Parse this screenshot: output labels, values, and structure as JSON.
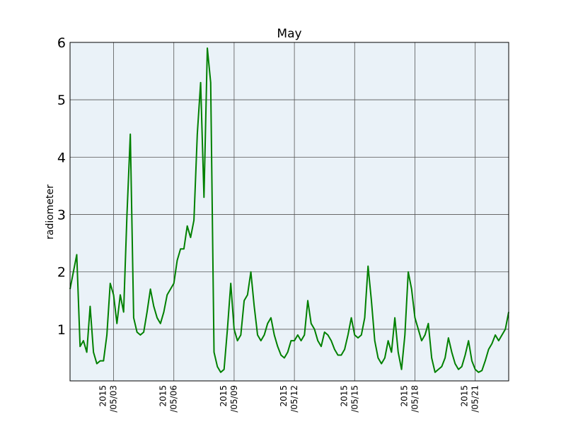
{
  "chart_data": {
    "type": "line",
    "title": "May",
    "y_label": "radiometer",
    "x": [
      "2015-04-30 20:00",
      "2015-05-01 00:00",
      "2015-05-01 04:00",
      "2015-05-01 08:00",
      "2015-05-01 12:00",
      "2015-05-01 16:00",
      "2015-05-01 20:00",
      "2015-05-02 00:00",
      "2015-05-02 04:00",
      "2015-05-02 08:00",
      "2015-05-02 12:00",
      "2015-05-02 16:00",
      "2015-05-02 20:00",
      "2015-05-03 00:00",
      "2015-05-03 04:00",
      "2015-05-03 08:00",
      "2015-05-03 12:00",
      "2015-05-03 16:00",
      "2015-05-03 20:00",
      "2015-05-04 00:00",
      "2015-05-04 04:00",
      "2015-05-04 08:00",
      "2015-05-04 12:00",
      "2015-05-04 16:00",
      "2015-05-04 20:00",
      "2015-05-05 00:00",
      "2015-05-05 04:00",
      "2015-05-05 08:00",
      "2015-05-05 12:00",
      "2015-05-05 16:00",
      "2015-05-05 20:00",
      "2015-05-06 00:00",
      "2015-05-06 04:00",
      "2015-05-06 08:00",
      "2015-05-06 12:00",
      "2015-05-06 16:00",
      "2015-05-06 20:00",
      "2015-05-07 00:00",
      "2015-05-07 04:00",
      "2015-05-07 08:00",
      "2015-05-07 12:00",
      "2015-05-07 16:00",
      "2015-05-07 20:00",
      "2015-05-08 00:00",
      "2015-05-08 04:00",
      "2015-05-08 08:00",
      "2015-05-08 12:00",
      "2015-05-08 16:00",
      "2015-05-08 20:00",
      "2015-05-09 00:00",
      "2015-05-09 04:00",
      "2015-05-09 08:00",
      "2015-05-09 12:00",
      "2015-05-09 16:00",
      "2015-05-09 20:00",
      "2015-05-10 00:00",
      "2015-05-10 04:00",
      "2015-05-10 08:00",
      "2015-05-10 12:00",
      "2015-05-10 16:00",
      "2015-05-10 20:00",
      "2015-05-11 00:00",
      "2015-05-11 04:00",
      "2015-05-11 08:00",
      "2015-05-11 12:00",
      "2015-05-11 16:00",
      "2015-05-11 20:00",
      "2015-05-12 00:00",
      "2015-05-12 04:00",
      "2015-05-12 08:00",
      "2015-05-12 12:00",
      "2015-05-12 16:00",
      "2015-05-12 20:00",
      "2015-05-13 00:00",
      "2015-05-13 04:00",
      "2015-05-13 08:00",
      "2015-05-13 12:00",
      "2015-05-13 16:00",
      "2015-05-13 20:00",
      "2015-05-14 00:00",
      "2015-05-14 04:00",
      "2015-05-14 08:00",
      "2015-05-14 12:00",
      "2015-05-14 16:00",
      "2015-05-14 20:00",
      "2015-05-15 00:00",
      "2015-05-15 04:00",
      "2015-05-15 08:00",
      "2015-05-15 12:00",
      "2015-05-15 16:00",
      "2015-05-15 20:00",
      "2015-05-16 00:00",
      "2015-05-16 04:00",
      "2015-05-16 08:00",
      "2015-05-16 12:00",
      "2015-05-16 16:00",
      "2015-05-16 20:00",
      "2015-05-17 00:00",
      "2015-05-17 04:00",
      "2015-05-17 08:00",
      "2015-05-17 12:00",
      "2015-05-17 16:00",
      "2015-05-17 20:00",
      "2015-05-18 00:00",
      "2015-05-18 04:00",
      "2015-05-18 08:00",
      "2015-05-18 12:00",
      "2015-05-18 16:00",
      "2015-05-18 20:00",
      "2015-05-19 00:00",
      "2015-05-19 04:00",
      "2015-05-19 08:00",
      "2015-05-19 12:00",
      "2015-05-19 16:00",
      "2015-05-19 20:00",
      "2015-05-20 00:00",
      "2015-05-20 04:00",
      "2015-05-20 08:00",
      "2015-05-20 12:00",
      "2015-05-20 16:00",
      "2015-05-20 20:00",
      "2015-05-21 00:00",
      "2015-05-21 04:00",
      "2015-05-21 08:00",
      "2015-05-21 12:00",
      "2015-05-21 16:00",
      "2015-05-21 20:00",
      "2015-05-22 00:00",
      "2015-05-22 04:00",
      "2015-05-22 08:00",
      "2015-05-22 12:00",
      "2015-05-22 16:00"
    ],
    "series": [
      {
        "name": "radiometer",
        "color": "#008000",
        "values": [
          1.7,
          2.0,
          2.3,
          0.7,
          0.8,
          0.6,
          1.4,
          0.6,
          0.4,
          0.45,
          0.45,
          0.9,
          1.8,
          1.6,
          1.1,
          1.6,
          1.3,
          3.0,
          4.4,
          1.2,
          0.95,
          0.9,
          0.95,
          1.3,
          1.7,
          1.4,
          1.2,
          1.1,
          1.3,
          1.6,
          1.7,
          1.8,
          2.2,
          2.4,
          2.4,
          2.8,
          2.6,
          2.9,
          4.4,
          5.3,
          3.3,
          5.9,
          5.3,
          0.6,
          0.35,
          0.25,
          0.3,
          1.0,
          1.8,
          1.0,
          0.8,
          0.9,
          1.5,
          1.6,
          2.0,
          1.4,
          0.9,
          0.8,
          0.9,
          1.1,
          1.2,
          0.9,
          0.7,
          0.55,
          0.5,
          0.6,
          0.8,
          0.8,
          0.9,
          0.8,
          0.9,
          1.5,
          1.1,
          1.0,
          0.8,
          0.7,
          0.95,
          0.9,
          0.8,
          0.65,
          0.55,
          0.55,
          0.65,
          0.9,
          1.2,
          0.9,
          0.85,
          0.9,
          1.2,
          2.1,
          1.5,
          0.8,
          0.5,
          0.4,
          0.5,
          0.8,
          0.6,
          1.2,
          0.6,
          0.3,
          0.9,
          2.0,
          1.7,
          1.2,
          1.0,
          0.8,
          0.9,
          1.1,
          0.5,
          0.25,
          0.3,
          0.35,
          0.5,
          0.85,
          0.6,
          0.4,
          0.3,
          0.35,
          0.55,
          0.8,
          0.45,
          0.3,
          0.25,
          0.28,
          0.45,
          0.65,
          0.75,
          0.9,
          0.8,
          0.9,
          1.0,
          1.3
        ]
      }
    ],
    "xlim": [
      "2015-04-30 20:00",
      "2015-05-22 16:00"
    ],
    "xticks": [
      {
        "value": "2015-05-03 00:00",
        "label": "2015\n/05/03"
      },
      {
        "value": "2015-05-06 00:00",
        "label": "2015\n/05/06"
      },
      {
        "value": "2015-05-09 00:00",
        "label": "2015\n/05/09"
      },
      {
        "value": "2015-05-12 00:00",
        "label": "2015\n/05/12"
      },
      {
        "value": "2015-05-15 00:00",
        "label": "2015\n/05/15"
      },
      {
        "value": "2015-05-18 00:00",
        "label": "2015\n/05/18"
      },
      {
        "value": "2015-05-21 00:00",
        "label": "2015\n/05/21"
      }
    ],
    "ylim": [
      0.1,
      6
    ],
    "yticks": [
      1,
      2,
      3,
      4,
      5,
      6
    ],
    "grid": true,
    "background": "#eaf2f8"
  }
}
